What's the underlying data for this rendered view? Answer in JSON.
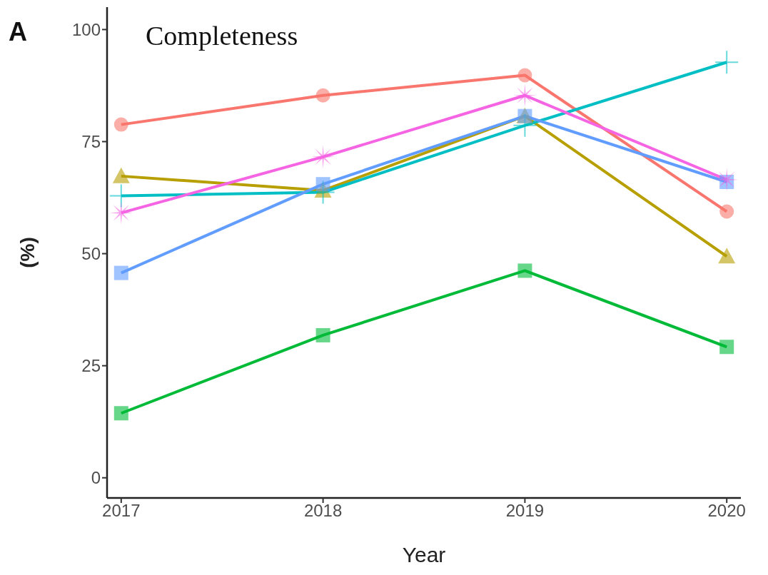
{
  "chart_data": {
    "type": "line",
    "title": "Completeness",
    "xlabel": "Year",
    "ylabel": "(%)",
    "annotations": [
      "A"
    ],
    "x": [
      2017,
      2018,
      2019,
      2020
    ],
    "xlim": [
      2016.93,
      2020.07
    ],
    "xticks": [
      2017,
      2018,
      2019,
      2020
    ],
    "ylim": [
      -4.5,
      105
    ],
    "yticks": [
      0,
      25,
      50,
      75,
      100
    ],
    "grid": false,
    "line_style": "solid",
    "series": [
      {
        "color": "#f8766d",
        "marker": "circle",
        "values": [
          78.8,
          85.3,
          89.8,
          59.4
        ]
      },
      {
        "color": "#b79f00",
        "marker": "triangle",
        "values": [
          67.3,
          64.1,
          80.7,
          49.4
        ]
      },
      {
        "color": "#00ba38",
        "marker": "square",
        "values": [
          14.4,
          31.8,
          46.2,
          29.2
        ]
      },
      {
        "color": "#00bfc4",
        "marker": "cross",
        "values": [
          62.9,
          63.7,
          78.6,
          92.7
        ]
      },
      {
        "color": "#619cff",
        "marker": "square",
        "values": [
          45.7,
          65.5,
          80.7,
          66.0
        ]
      },
      {
        "color": "#f564e3",
        "marker": "star",
        "values": [
          59.1,
          71.6,
          85.3,
          66.5
        ]
      }
    ]
  }
}
